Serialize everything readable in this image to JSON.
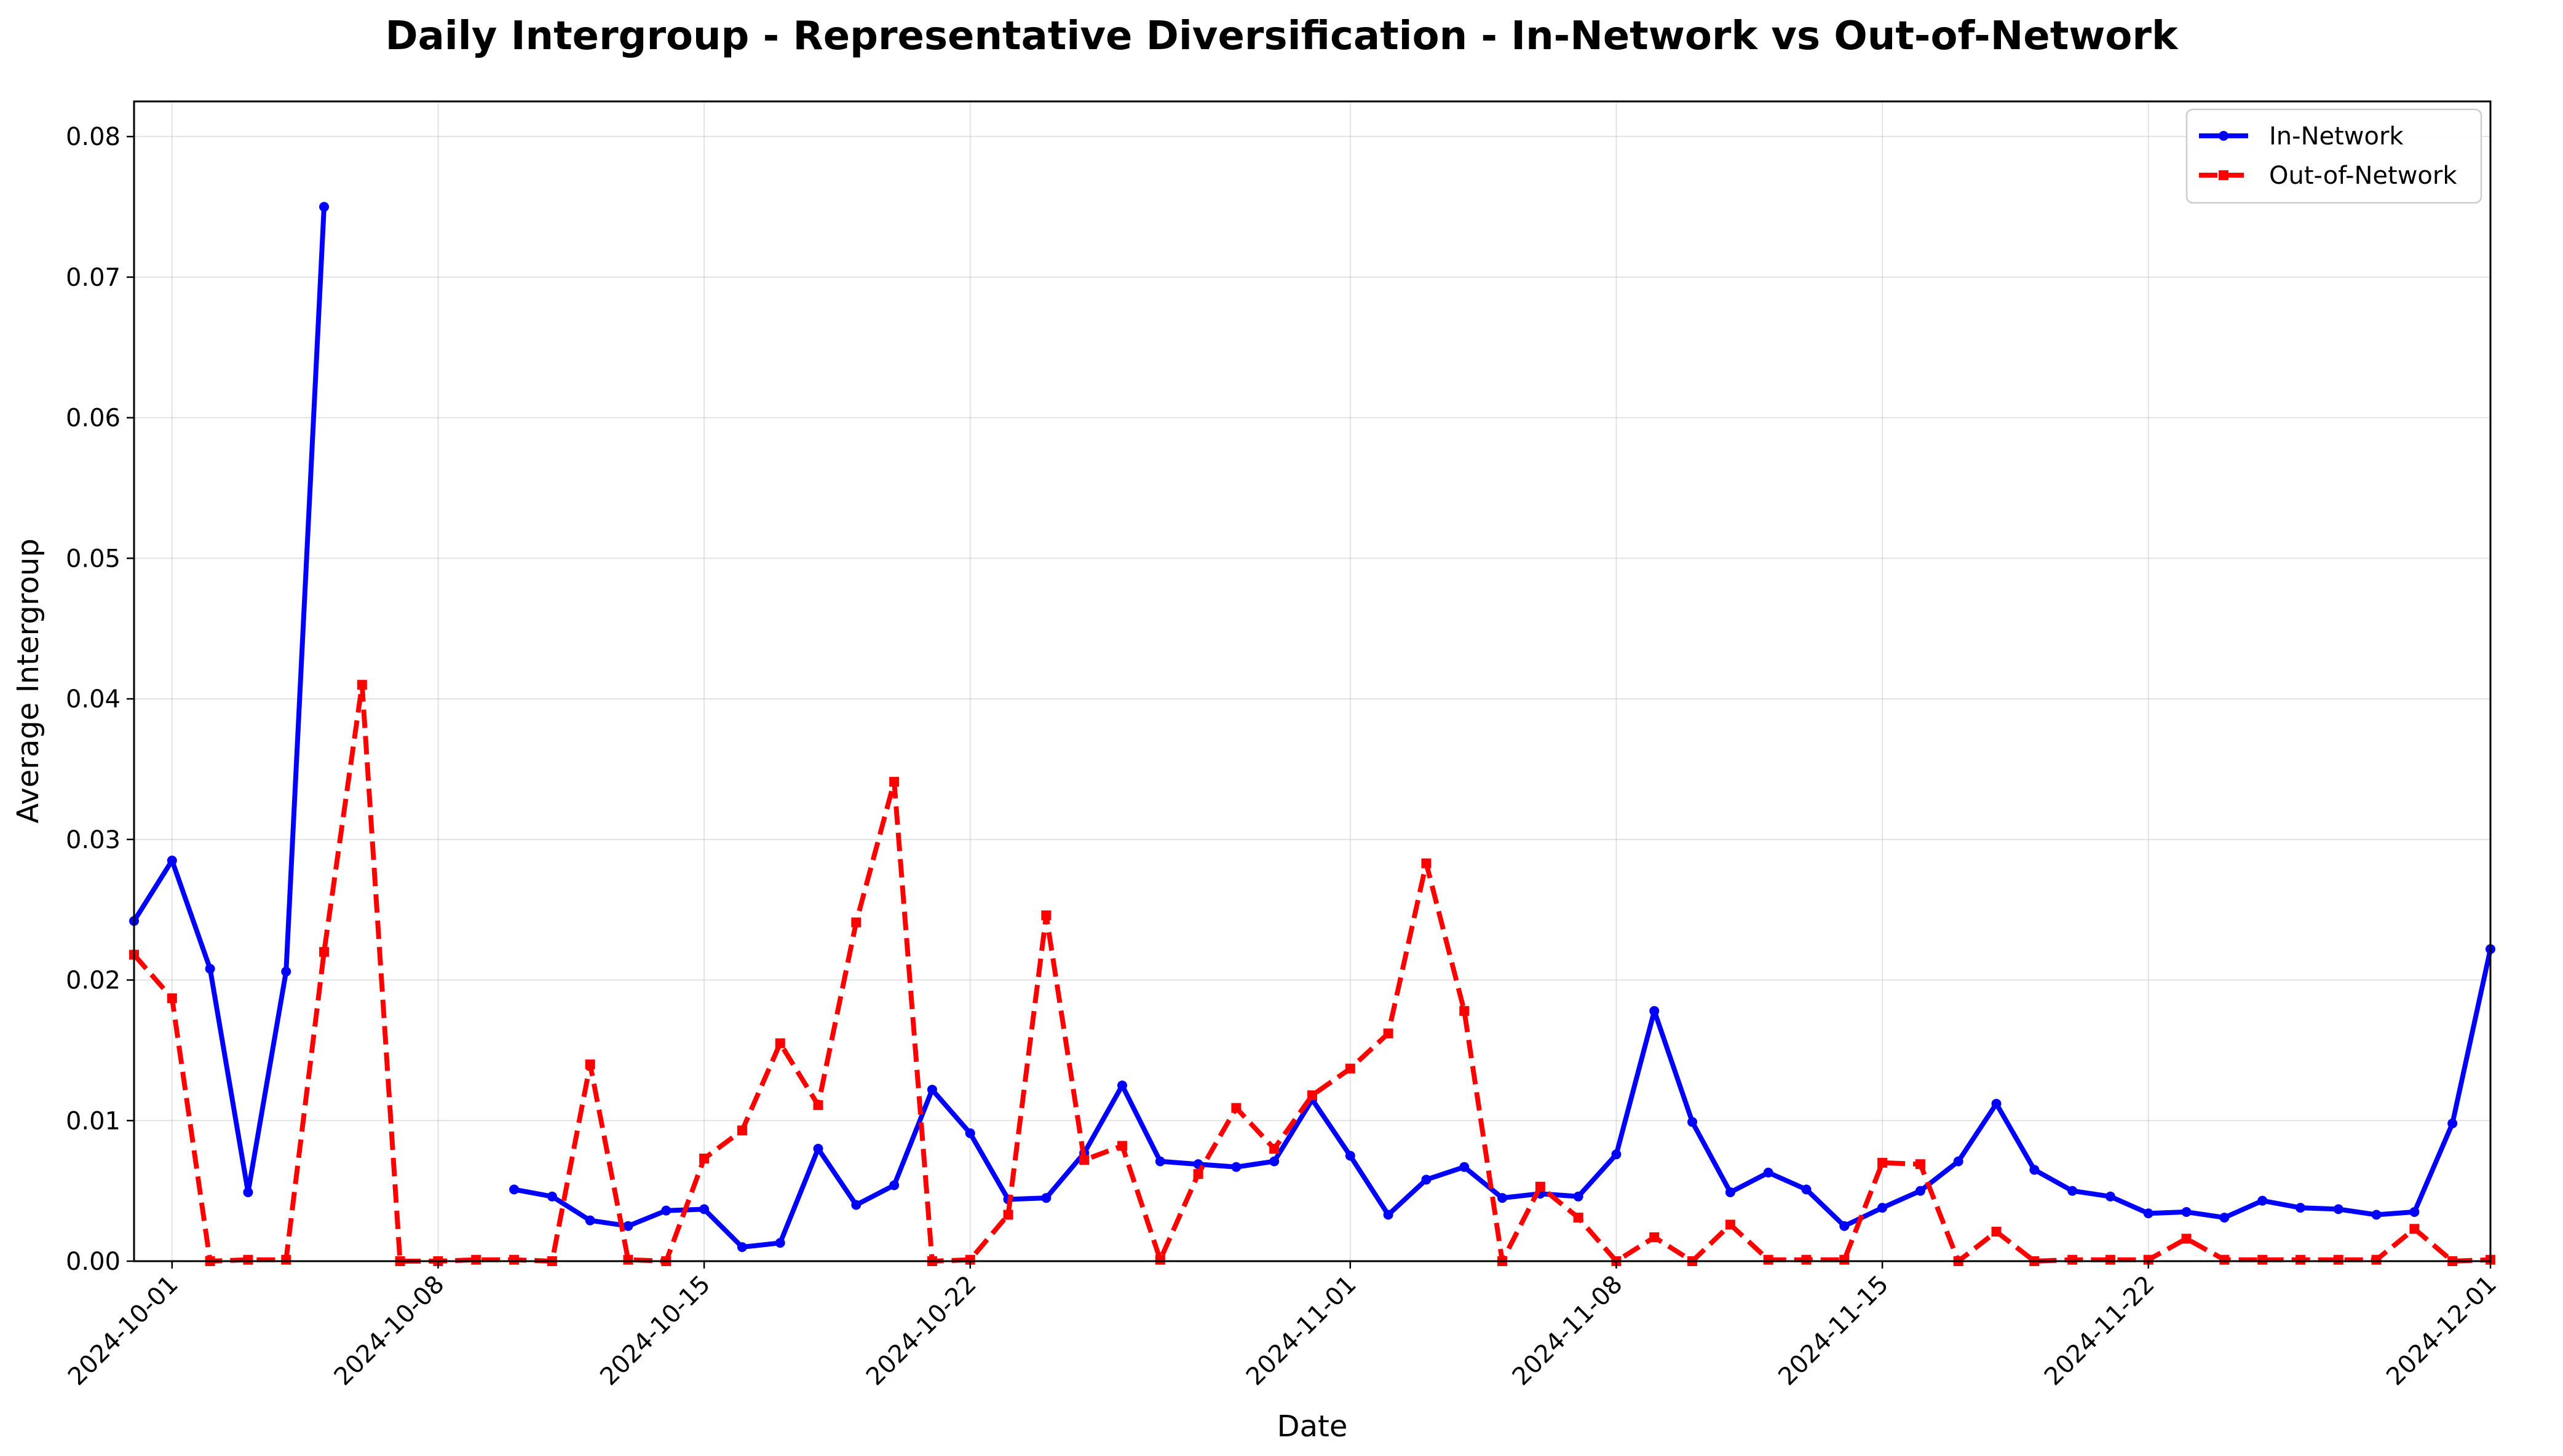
{
  "chart_data": {
    "type": "line",
    "title": "Daily Intergroup - Representative Diversification - In-Network vs Out-of-Network",
    "xlabel": "Date",
    "ylabel": "Average Intergroup",
    "x_range": [
      "2024-09-30",
      "2024-12-01"
    ],
    "ylim": [
      0,
      0.0825
    ],
    "x_ticks": [
      "2024-10-01",
      "2024-10-08",
      "2024-10-15",
      "2024-10-22",
      "2024-11-01",
      "2024-11-08",
      "2024-11-15",
      "2024-11-22",
      "2024-12-01"
    ],
    "y_ticks": [
      "0.00",
      "0.01",
      "0.02",
      "0.03",
      "0.04",
      "0.05",
      "0.06",
      "0.07",
      "0.08"
    ],
    "grid": true,
    "legend_position": "top-right",
    "series": [
      {
        "name": "In-Network",
        "color": "#0000ff",
        "line_style": "solid",
        "marker": "circle",
        "points": [
          [
            "2024-09-30",
            0.0242
          ],
          [
            "2024-10-01",
            0.0285
          ],
          [
            "2024-10-02",
            0.0208
          ],
          [
            "2024-10-03",
            0.0049
          ],
          [
            "2024-10-04",
            0.0206
          ],
          [
            "2024-10-05",
            0.075
          ],
          [
            "2024-10-10",
            0.0051
          ],
          [
            "2024-10-11",
            0.0046
          ],
          [
            "2024-10-12",
            0.0029
          ],
          [
            "2024-10-13",
            0.0025
          ],
          [
            "2024-10-14",
            0.0036
          ],
          [
            "2024-10-15",
            0.0037
          ],
          [
            "2024-10-16",
            0.001
          ],
          [
            "2024-10-17",
            0.0013
          ],
          [
            "2024-10-18",
            0.008
          ],
          [
            "2024-10-19",
            0.004
          ],
          [
            "2024-10-20",
            0.0054
          ],
          [
            "2024-10-21",
            0.0122
          ],
          [
            "2024-10-22",
            0.0091
          ],
          [
            "2024-10-23",
            0.0044
          ],
          [
            "2024-10-24",
            0.0045
          ],
          [
            "2024-10-25",
            0.0077
          ],
          [
            "2024-10-26",
            0.0125
          ],
          [
            "2024-10-27",
            0.0071
          ],
          [
            "2024-10-28",
            0.0069
          ],
          [
            "2024-10-29",
            0.0067
          ],
          [
            "2024-10-30",
            0.0071
          ],
          [
            "2024-10-31",
            0.0115
          ],
          [
            "2024-11-01",
            0.0075
          ],
          [
            "2024-11-02",
            0.0033
          ],
          [
            "2024-11-03",
            0.0058
          ],
          [
            "2024-11-04",
            0.0067
          ],
          [
            "2024-11-05",
            0.0045
          ],
          [
            "2024-11-06",
            0.0048
          ],
          [
            "2024-11-07",
            0.0046
          ],
          [
            "2024-11-08",
            0.0076
          ],
          [
            "2024-11-09",
            0.0178
          ],
          [
            "2024-11-10",
            0.0099
          ],
          [
            "2024-11-11",
            0.0049
          ],
          [
            "2024-11-12",
            0.0063
          ],
          [
            "2024-11-13",
            0.0051
          ],
          [
            "2024-11-14",
            0.0025
          ],
          [
            "2024-11-15",
            0.0038
          ],
          [
            "2024-11-16",
            0.005
          ],
          [
            "2024-11-17",
            0.0071
          ],
          [
            "2024-11-18",
            0.0112
          ],
          [
            "2024-11-19",
            0.0065
          ],
          [
            "2024-11-20",
            0.005
          ],
          [
            "2024-11-21",
            0.0046
          ],
          [
            "2024-11-22",
            0.0034
          ],
          [
            "2024-11-23",
            0.0035
          ],
          [
            "2024-11-24",
            0.0031
          ],
          [
            "2024-11-25",
            0.0043
          ],
          [
            "2024-11-26",
            0.0038
          ],
          [
            "2024-11-27",
            0.0037
          ],
          [
            "2024-11-28",
            0.0033
          ],
          [
            "2024-11-29",
            0.0035
          ],
          [
            "2024-11-30",
            0.0098
          ],
          [
            "2024-12-01",
            0.0222
          ]
        ]
      },
      {
        "name": "Out-of-Network",
        "color": "#ff0000",
        "line_style": "dashed",
        "marker": "square",
        "points": [
          [
            "2024-09-30",
            0.0218
          ],
          [
            "2024-10-01",
            0.0187
          ],
          [
            "2024-10-02",
            0.0
          ],
          [
            "2024-10-03",
            0.0001
          ],
          [
            "2024-10-04",
            0.0001
          ],
          [
            "2024-10-05",
            0.022
          ],
          [
            "2024-10-06",
            0.041
          ],
          [
            "2024-10-07",
            0.0
          ],
          [
            "2024-10-08",
            0.0
          ],
          [
            "2024-10-09",
            0.0001
          ],
          [
            "2024-10-10",
            0.0001
          ],
          [
            "2024-10-11",
            0.0
          ],
          [
            "2024-10-12",
            0.014
          ],
          [
            "2024-10-13",
            0.0001
          ],
          [
            "2024-10-14",
            0.0
          ],
          [
            "2024-10-15",
            0.0073
          ],
          [
            "2024-10-16",
            0.0093
          ],
          [
            "2024-10-17",
            0.0155
          ],
          [
            "2024-10-18",
            0.0111
          ],
          [
            "2024-10-19",
            0.0241
          ],
          [
            "2024-10-20",
            0.0341
          ],
          [
            "2024-10-21",
            0.0
          ],
          [
            "2024-10-22",
            0.0001
          ],
          [
            "2024-10-23",
            0.0033
          ],
          [
            "2024-10-24",
            0.0246
          ],
          [
            "2024-10-25",
            0.0072
          ],
          [
            "2024-10-26",
            0.0082
          ],
          [
            "2024-10-27",
            0.0001
          ],
          [
            "2024-10-28",
            0.0062
          ],
          [
            "2024-10-29",
            0.0109
          ],
          [
            "2024-10-30",
            0.008
          ],
          [
            "2024-10-31",
            0.0118
          ],
          [
            "2024-11-01",
            0.0137
          ],
          [
            "2024-11-02",
            0.0162
          ],
          [
            "2024-11-03",
            0.0283
          ],
          [
            "2024-11-04",
            0.0178
          ],
          [
            "2024-11-05",
            0.0
          ],
          [
            "2024-11-06",
            0.0053
          ],
          [
            "2024-11-07",
            0.0031
          ],
          [
            "2024-11-08",
            0.0
          ],
          [
            "2024-11-09",
            0.0017
          ],
          [
            "2024-11-10",
            0.0
          ],
          [
            "2024-11-11",
            0.0026
          ],
          [
            "2024-11-12",
            0.0001
          ],
          [
            "2024-11-13",
            0.0001
          ],
          [
            "2024-11-14",
            0.0001
          ],
          [
            "2024-11-15",
            0.007
          ],
          [
            "2024-11-16",
            0.0069
          ],
          [
            "2024-11-17",
            0.0
          ],
          [
            "2024-11-18",
            0.0021
          ],
          [
            "2024-11-19",
            0.0
          ],
          [
            "2024-11-20",
            0.0001
          ],
          [
            "2024-11-21",
            0.0001
          ],
          [
            "2024-11-22",
            0.0001
          ],
          [
            "2024-11-23",
            0.0016
          ],
          [
            "2024-11-24",
            0.0001
          ],
          [
            "2024-11-25",
            0.0001
          ],
          [
            "2024-11-26",
            0.0001
          ],
          [
            "2024-11-27",
            0.0001
          ],
          [
            "2024-11-28",
            0.0001
          ],
          [
            "2024-11-29",
            0.0023
          ],
          [
            "2024-11-30",
            0.0
          ],
          [
            "2024-12-01",
            0.0001
          ]
        ]
      }
    ]
  }
}
